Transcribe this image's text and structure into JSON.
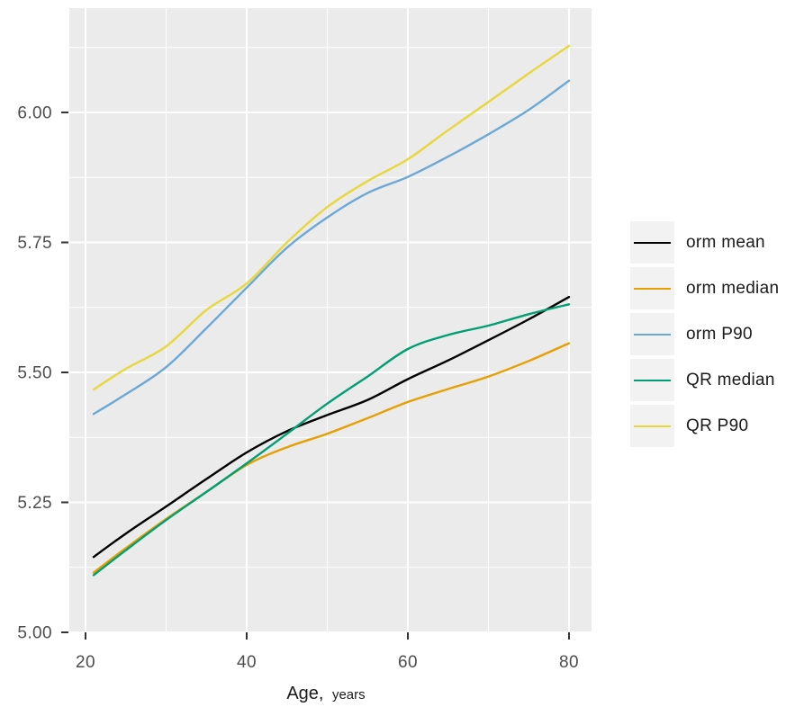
{
  "figure": {
    "background": "#FFFFFF",
    "panel_background": "#EBEBEB",
    "grid_color": "#FFFFFF",
    "axis_text_color": "#4D4D4D",
    "tick_color": "#333333",
    "legend_key_background": "#F2F2F2",
    "text_color": "#1A1A1A"
  },
  "x_axis": {
    "title_main": "Age,",
    "title_units": "years",
    "tick_labels": [
      "20",
      "40",
      "60",
      "80"
    ],
    "tick_values": [
      20,
      40,
      60,
      80
    ],
    "minor_tick_values": [
      30,
      50,
      70
    ]
  },
  "y_axis": {
    "title": "",
    "tick_labels": [
      "5.00",
      "5.25",
      "5.50",
      "5.75",
      "6.00"
    ],
    "tick_values": [
      5.0,
      5.25,
      5.5,
      5.75,
      6.0
    ],
    "minor_tick_values": [
      5.125,
      5.375,
      5.625,
      5.875,
      6.125
    ]
  },
  "legend": {
    "position": "right",
    "items": [
      {
        "label": "orm mean",
        "color": "#000000"
      },
      {
        "label": "orm median",
        "color": "#E69F00"
      },
      {
        "label": "orm P90",
        "color": "#6BA8D5"
      },
      {
        "label": "QR median",
        "color": "#009E73"
      },
      {
        "label": "QR P90",
        "color": "#E8D73A"
      }
    ]
  },
  "chart_data": {
    "type": "line",
    "title": "",
    "xlabel": "Age, years",
    "xlabel_main": "Age,",
    "xlabel_units": "years",
    "ylabel": "",
    "xlim": [
      18,
      82.9
    ],
    "ylim": [
      5.0,
      6.2
    ],
    "grid": true,
    "legend_position": "right",
    "x": [
      21,
      25,
      30,
      35,
      40,
      45,
      50,
      55,
      60,
      65,
      70,
      75,
      80
    ],
    "series": [
      {
        "name": "orm mean",
        "color": "#000000",
        "values": [
          5.145,
          5.19,
          5.242,
          5.295,
          5.346,
          5.387,
          5.418,
          5.447,
          5.487,
          5.523,
          5.562,
          5.602,
          5.645
        ]
      },
      {
        "name": "orm median",
        "color": "#E69F00",
        "values": [
          5.115,
          5.162,
          5.218,
          5.27,
          5.322,
          5.356,
          5.382,
          5.412,
          5.443,
          5.468,
          5.492,
          5.522,
          5.556
        ]
      },
      {
        "name": "orm P90",
        "color": "#6BA8D5",
        "values": [
          5.42,
          5.458,
          5.51,
          5.585,
          5.663,
          5.74,
          5.798,
          5.845,
          5.876,
          5.915,
          5.958,
          6.005,
          6.061
        ]
      },
      {
        "name": "QR median",
        "color": "#009E73",
        "values": [
          5.11,
          5.158,
          5.216,
          5.27,
          5.325,
          5.382,
          5.44,
          5.492,
          5.545,
          5.572,
          5.59,
          5.612,
          5.631
        ]
      },
      {
        "name": "QR P90",
        "color": "#E8D73A",
        "values": [
          5.467,
          5.507,
          5.55,
          5.62,
          5.671,
          5.75,
          5.818,
          5.868,
          5.91,
          5.966,
          6.02,
          6.075,
          6.128
        ]
      }
    ]
  }
}
